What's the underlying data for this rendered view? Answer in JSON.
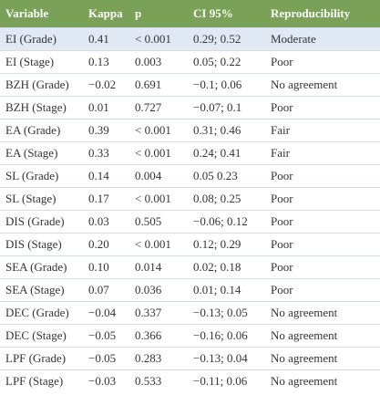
{
  "table": {
    "columns": [
      "Variable",
      "Kappa",
      "p",
      "CI 95%",
      "Reproducibility"
    ],
    "rows": [
      [
        "EI (Grade)",
        "0.41",
        "< 0.001",
        "0.29; 0.52",
        "Moderate"
      ],
      [
        "EI (Stage)",
        "0.13",
        "0.003",
        "0.05; 0.22",
        "Poor"
      ],
      [
        "BZH (Grade)",
        "−0.02",
        "0.691",
        "−0.1; 0.06",
        "No agreement"
      ],
      [
        "BZH (Stage)",
        "0.01",
        "0.727",
        "−0.07; 0.1",
        "Poor"
      ],
      [
        "EA (Grade)",
        "0.39",
        "< 0.001",
        "0.31; 0.46",
        "Fair"
      ],
      [
        "EA (Stage)",
        "0.33",
        "< 0.001",
        "0.24; 0.41",
        "Fair"
      ],
      [
        "SL (Grade)",
        "0.14",
        "0.004",
        "0.05 0.23",
        "Poor"
      ],
      [
        "SL (Stage)",
        "0.17",
        "< 0.001",
        "0.08; 0.25",
        "Poor"
      ],
      [
        "DIS (Grade)",
        "0.03",
        "0.505",
        "−0.06; 0.12",
        "Poor"
      ],
      [
        "DIS (Stage)",
        "0.20",
        "< 0.001",
        "0.12; 0.29",
        "Poor"
      ],
      [
        "SEA (Grade)",
        "0.10",
        "0.014",
        "0.02; 0.18",
        "Poor"
      ],
      [
        "SEA (Stage)",
        "0.07",
        "0.036",
        "0.01; 0.14",
        "Poor"
      ],
      [
        "DEC (Grade)",
        "−0.04",
        "0.337",
        "−0.13; 0.05",
        "No agreement"
      ],
      [
        "DEC (Stage)",
        "−0.05",
        "0.366",
        "−0.16; 0.06",
        "No agreement"
      ],
      [
        "LPF (Grade)",
        "−0.05",
        "0.283",
        "−0.13; 0.04",
        "No agreement"
      ],
      [
        "LPF (Stage)",
        "−0.03",
        "0.533",
        "−0.11; 0.06",
        "No agreement"
      ]
    ]
  }
}
